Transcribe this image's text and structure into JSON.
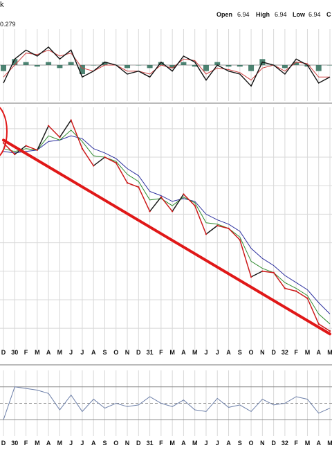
{
  "header": {
    "corner_glyph": "k",
    "open_label": "Open",
    "open_value": "6.94",
    "high_label": "High",
    "high_value": "6.94",
    "low_label": "Low",
    "low_value": "6.94",
    "close_label": "C",
    "indicator_value": "0.279"
  },
  "colors": {
    "price_up": "#1a1a1a",
    "price_down": "#cc1a1a",
    "ma_fast": "#2e8b2e",
    "ma_slow": "#2b2f9e",
    "trendline": "#e01818",
    "macd_line": "#111111",
    "signal_line": "#d04040",
    "histogram": "#2f6f5a",
    "rsi_line": "#6b7ea8",
    "grid": "#d8d8d8",
    "panel_border": "#9a9a9a"
  },
  "chart_data": {
    "type": "line",
    "title": "",
    "x_ticks": [
      "D",
      "30",
      "F",
      "M",
      "A",
      "M",
      "J",
      "J",
      "A",
      "S",
      "O",
      "N",
      "D",
      "31",
      "F",
      "M",
      "A",
      "M",
      "J",
      "J",
      "A",
      "S",
      "O",
      "N",
      "D",
      "32",
      "F",
      "M",
      "A",
      "M"
    ],
    "price_series": [
      17,
      16.2,
      16.8,
      16.5,
      18.2,
      17.4,
      18.6,
      16.6,
      15.4,
      16,
      15.6,
      14.2,
      13.9,
      12.2,
      13.2,
      12.2,
      13.4,
      12.6,
      10.6,
      11.2,
      11,
      10.2,
      7.6,
      8,
      7.9,
      6.8,
      6.6,
      6.1,
      4.3,
      3.8
    ],
    "ma_fast_series": [
      16.6,
      16.4,
      16.6,
      16.5,
      17.5,
      17.2,
      17.9,
      17.1,
      16.1,
      16,
      15.7,
      14.8,
      14.3,
      13,
      13.1,
      12.6,
      13.2,
      12.8,
      11.4,
      11.3,
      11,
      10.4,
      8.7,
      8.2,
      7.9,
      7.2,
      6.8,
      6.3,
      5,
      4.3
    ],
    "ma_slow_series": [
      16.4,
      16.3,
      16.4,
      16.5,
      17.1,
      17.2,
      17.5,
      17.3,
      16.6,
      16.3,
      15.9,
      15.2,
      14.7,
      13.6,
      13.3,
      12.9,
      13.1,
      12.9,
      12,
      11.6,
      11.3,
      10.8,
      9.6,
      8.9,
      8.4,
      7.7,
      7.2,
      6.7,
      5.8,
      5
    ],
    "trendline": {
      "start_index": 0,
      "start_value": 17.2,
      "end_index": 29,
      "end_value": 3.6
    },
    "macd_series": [
      -0.6,
      0.2,
      0.5,
      0.3,
      0.6,
      0.2,
      0.5,
      -0.4,
      -0.2,
      0.1,
      0.0,
      -0.3,
      -0.2,
      -0.4,
      0.1,
      -0.2,
      0.3,
      0.1,
      -0.5,
      0.0,
      -0.2,
      -0.3,
      -0.7,
      0.1,
      0.0,
      -0.3,
      0.2,
      0.0,
      -0.6,
      -0.4
    ],
    "signal_series": [
      -0.4,
      0.0,
      0.4,
      0.35,
      0.5,
      0.3,
      0.4,
      -0.1,
      -0.2,
      0.0,
      0.0,
      -0.2,
      -0.2,
      -0.3,
      0.0,
      -0.1,
      0.2,
      0.15,
      -0.3,
      -0.1,
      -0.15,
      -0.25,
      -0.5,
      -0.1,
      0.0,
      -0.2,
      0.1,
      0.05,
      -0.4,
      -0.4
    ],
    "histogram_series": [
      -0.2,
      0.2,
      0.1,
      -0.05,
      0.1,
      -0.1,
      0.1,
      -0.3,
      0.0,
      0.1,
      0.0,
      -0.1,
      0.0,
      -0.1,
      0.1,
      -0.1,
      0.1,
      -0.05,
      -0.2,
      0.1,
      -0.05,
      -0.05,
      -0.2,
      0.2,
      0.0,
      -0.1,
      0.1,
      -0.05,
      -0.2,
      0.0
    ],
    "rsi_series": [
      30,
      70,
      68,
      66,
      62,
      42,
      60,
      40,
      55,
      44,
      50,
      46,
      48,
      58,
      50,
      46,
      54,
      42,
      40,
      56,
      45,
      48,
      40,
      55,
      48,
      50,
      58,
      55,
      38,
      44
    ],
    "rsi_levels": [
      30,
      50,
      70
    ]
  }
}
